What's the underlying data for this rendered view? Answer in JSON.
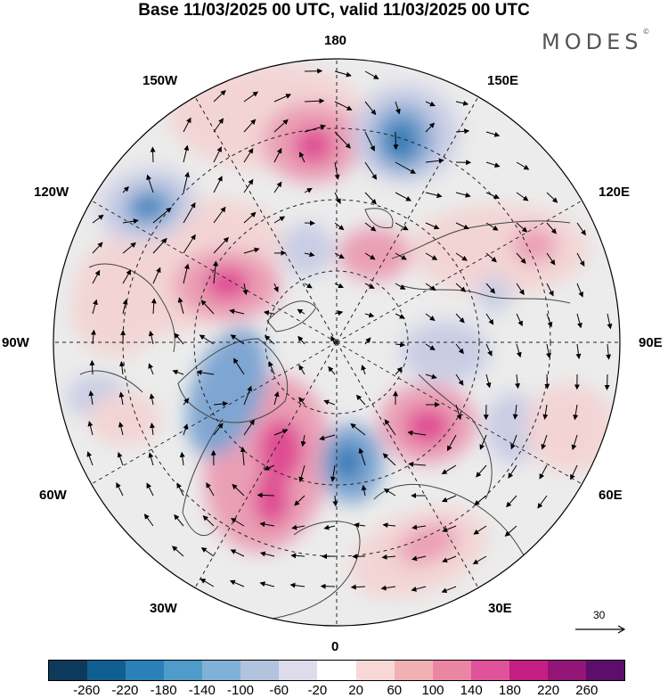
{
  "title": "Base 11/03/2025 00 UTC, valid 11/03/2025 00 UTC",
  "logo": {
    "text": "MODES",
    "mark": "©"
  },
  "longitude_labels": {
    "lon_180": "180",
    "lon_150E": "150E",
    "lon_120E": "120E",
    "lon_90E": "90E",
    "lon_60E": "60E",
    "lon_30E": "30E",
    "lon_0": "0",
    "lon_30W": "30W",
    "lon_60W": "60W",
    "lon_90W": "90W",
    "lon_120W": "120W",
    "lon_150W": "150W"
  },
  "reference_vector": {
    "label": "30"
  },
  "colorbar": {
    "colors": [
      "#0d3a5c",
      "#115f91",
      "#2a80b8",
      "#4f9bc9",
      "#7fb2d6",
      "#b2c3de",
      "#dcdcec",
      "#ffffff",
      "#f8d8d6",
      "#f1b1b4",
      "#ea86a4",
      "#e0529a",
      "#c41f84",
      "#931578",
      "#5d0d6c"
    ],
    "ticks": [
      "-260",
      "-220",
      "-180",
      "-140",
      "-100",
      "-60",
      "-20",
      "20",
      "60",
      "100",
      "140",
      "180",
      "220",
      "260"
    ]
  },
  "map": {
    "projection": "north-polar-stereographic",
    "field_colors": {
      "neg_strong": "#2f7ab4",
      "neg_mid": "#7fa6d2",
      "neg_weak": "#c9cde4",
      "neutral": "#ececec",
      "pos_weak": "#f3d4d4",
      "pos_mid": "#ea9fb5",
      "pos_strong": "#df4b93"
    },
    "coast_color": "#444444",
    "arrow_color": "#000000"
  }
}
